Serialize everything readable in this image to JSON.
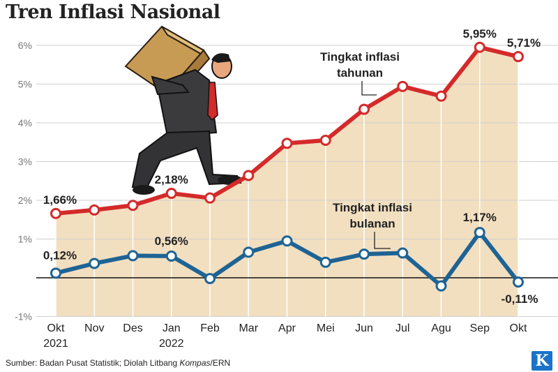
{
  "title": "Tren Inflasi Nasional",
  "source": {
    "prefix": "Sumber: Badan Pusat Statistik; Diolah Litbang ",
    "italic": "Kompas",
    "suffix": "/ERN"
  },
  "logo_text": "K",
  "colors": {
    "annual": "#d42a2a",
    "monthly": "#1e6394",
    "area": "#f2dfc0",
    "grid": "#cfcfcf"
  },
  "chart_data": {
    "type": "line",
    "categories": [
      "Okt",
      "Nov",
      "Des",
      "Jan",
      "Feb",
      "Mar",
      "Apr",
      "Mei",
      "Jun",
      "Jul",
      "Agu",
      "Sep",
      "Okt"
    ],
    "year_labels": [
      {
        "index": 0,
        "label": "2021"
      },
      {
        "index": 3,
        "label": "2022"
      }
    ],
    "y_ticks": [
      {
        "value": 6,
        "label": "6%"
      },
      {
        "value": 5,
        "label": "5%"
      },
      {
        "value": 4,
        "label": "4%"
      },
      {
        "value": 3,
        "label": "3%"
      },
      {
        "value": 2,
        "label": "2%"
      },
      {
        "value": 1,
        "label": "1%"
      },
      {
        "value": -1,
        "label": "-1%"
      }
    ],
    "ylim": [
      -1,
      6.3
    ],
    "grid": true,
    "series": [
      {
        "key": "annual",
        "name": "Tingkat inflasi tahunan",
        "name_lines": [
          "Tingkat inflasi",
          "tahunan"
        ],
        "values": [
          1.66,
          1.75,
          1.87,
          2.18,
          2.06,
          2.64,
          3.47,
          3.55,
          4.35,
          4.94,
          4.69,
          5.95,
          5.71
        ],
        "labels": [
          {
            "index": 0,
            "text": "1,66%"
          },
          {
            "index": 3,
            "text": "2,18%"
          },
          {
            "index": 11,
            "text": "5,95%"
          },
          {
            "index": 12,
            "text": "5,71%"
          }
        ]
      },
      {
        "key": "monthly",
        "name": "Tingkat inflasi bulanan",
        "name_lines": [
          "Tingkat inflasi",
          "bulanan"
        ],
        "values": [
          0.12,
          0.37,
          0.57,
          0.56,
          -0.02,
          0.66,
          0.95,
          0.4,
          0.61,
          0.64,
          -0.21,
          1.17,
          -0.11
        ],
        "labels": [
          {
            "index": 0,
            "text": "0,12%"
          },
          {
            "index": 3,
            "text": "0,56%"
          },
          {
            "index": 11,
            "text": "1,17%"
          },
          {
            "index": 12,
            "text": "-0,11%"
          }
        ]
      }
    ]
  }
}
